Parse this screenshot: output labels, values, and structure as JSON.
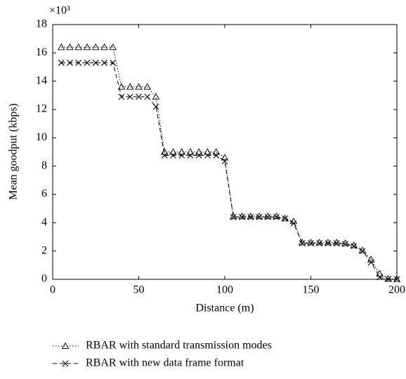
{
  "chart_data": {
    "type": "line",
    "xlabel": "Distance (m)",
    "ylabel": "Mean goodput (kbps)",
    "y_multiplier": "×10³",
    "x": [
      5,
      10,
      15,
      20,
      25,
      30,
      35,
      40,
      45,
      50,
      55,
      60,
      65,
      70,
      75,
      80,
      85,
      90,
      95,
      100,
      105,
      110,
      115,
      120,
      125,
      130,
      135,
      140,
      145,
      150,
      155,
      160,
      165,
      170,
      175,
      180,
      185,
      190,
      195,
      200
    ],
    "series": [
      {
        "name": "RBAR with standard transmission modes",
        "color": "#000000",
        "linestyle": "dotted",
        "marker": "triangle",
        "values": [
          16.4,
          16.4,
          16.4,
          16.4,
          16.4,
          16.4,
          16.4,
          13.6,
          13.6,
          13.6,
          13.6,
          12.9,
          9.0,
          9.0,
          9.0,
          9.0,
          9.0,
          9.0,
          9.0,
          8.6,
          4.45,
          4.45,
          4.45,
          4.45,
          4.45,
          4.45,
          4.3,
          4.1,
          2.6,
          2.6,
          2.6,
          2.6,
          2.6,
          2.55,
          2.4,
          2.05,
          1.4,
          0.4,
          0.05,
          0.02
        ]
      },
      {
        "name": "RBAR with new data frame format",
        "color": "#000000",
        "linestyle": "dashed",
        "marker": "x",
        "values": [
          15.3,
          15.3,
          15.3,
          15.3,
          15.3,
          15.3,
          15.3,
          12.9,
          12.9,
          12.9,
          12.9,
          12.2,
          8.75,
          8.75,
          8.75,
          8.75,
          8.75,
          8.75,
          8.75,
          8.35,
          4.4,
          4.4,
          4.4,
          4.4,
          4.4,
          4.4,
          4.3,
          3.95,
          2.55,
          2.55,
          2.55,
          2.55,
          2.55,
          2.5,
          2.35,
          2.0,
          1.2,
          0.15,
          0.02,
          0
        ]
      }
    ],
    "xlim": [
      0,
      200
    ],
    "xticks": [
      0,
      50,
      100,
      150,
      200
    ],
    "ylim": [
      0,
      18
    ],
    "yticks": [
      0,
      2,
      4,
      6,
      8,
      10,
      12,
      14,
      16,
      18
    ],
    "grid": false,
    "legend": "below"
  }
}
